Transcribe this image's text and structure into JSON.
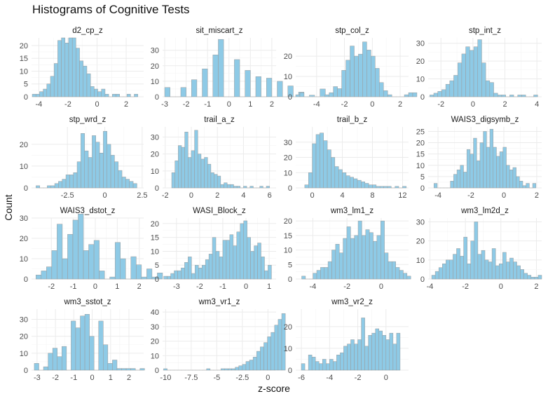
{
  "plot": {
    "title": "Histograms of Cognitive Tests",
    "xlabel": "z-score",
    "ylabel": "Count"
  },
  "colors": {
    "bar_fill": "#8ecae6",
    "bar_stroke": "#9a9a9a",
    "grid": "#ebebeb",
    "text": "#4d4d4d"
  },
  "chart_data": [
    {
      "type": "bar",
      "title": "d2_cp_z",
      "xlim": [
        -4.5,
        3.2
      ],
      "ylim": [
        0,
        23
      ],
      "xticks": [
        -4,
        -2,
        0,
        2
      ],
      "yticks": [
        0,
        5,
        10,
        15,
        20
      ],
      "bin_start": -4.45,
      "bin_width": 0.25,
      "values": [
        1,
        1,
        2,
        3,
        5,
        8,
        13,
        22,
        23,
        21,
        23,
        23,
        19,
        14,
        12,
        9,
        4,
        3,
        2,
        3,
        1,
        0,
        1,
        1,
        0,
        0,
        1,
        0,
        1
      ]
    },
    {
      "type": "bar",
      "title": "sit_miscart_z",
      "xlim": [
        -3.1,
        2.2
      ],
      "ylim": [
        0,
        38
      ],
      "xticks": [
        -3,
        -2,
        -1,
        0,
        1,
        2
      ],
      "yticks": [
        0,
        10,
        20,
        30
      ],
      "bin_start": -3.0,
      "bin_width": 0.25,
      "values": [
        6,
        0,
        0,
        6,
        0,
        11,
        0,
        18,
        0,
        27,
        37,
        0,
        0,
        24,
        0,
        17,
        0,
        13,
        0,
        12,
        0,
        10,
        0,
        7,
        0,
        3,
        0,
        1,
        0,
        5
      ]
    },
    {
      "type": "bar",
      "title": "stp_col_z",
      "xlim": [
        -5.5,
        2.6
      ],
      "ylim": [
        0,
        29
      ],
      "xticks": [
        -4,
        -2,
        0,
        2
      ],
      "yticks": [
        0,
        10,
        20
      ],
      "bin_start": -5.5,
      "bin_width": 0.3,
      "values": [
        1,
        2,
        0,
        0,
        0,
        0,
        0,
        1,
        2,
        5,
        4,
        13,
        18,
        25,
        20,
        21,
        27,
        23,
        20,
        14,
        7,
        3,
        1,
        0,
        0,
        0,
        1,
        2,
        2
      ]
    },
    {
      "type": "bar",
      "title": "stp_int_z",
      "xlim": [
        -2.8,
        4.3
      ],
      "ylim": [
        0,
        33
      ],
      "xticks": [
        -2,
        0,
        2,
        4
      ],
      "yticks": [
        0,
        10,
        20,
        30
      ],
      "bin_start": -2.7,
      "bin_width": 0.25,
      "values": [
        1,
        2,
        3,
        4,
        7,
        9,
        12,
        19,
        24,
        28,
        26,
        28,
        32,
        19,
        9,
        8,
        2,
        1,
        1,
        0,
        1,
        0,
        1,
        1,
        0,
        0,
        1
      ]
    },
    {
      "type": "bar",
      "title": "stp_wrd_z",
      "xlim": [
        -4.9,
        2.6
      ],
      "ylim": [
        0,
        28
      ],
      "xticks": [
        -2.5,
        0,
        2.5
      ],
      "yticks": [
        0,
        10,
        20
      ],
      "bin_start": -4.6,
      "bin_width": 0.25,
      "values": [
        1,
        0,
        0,
        1,
        1,
        2,
        3,
        4,
        6,
        6,
        7,
        12,
        25,
        17,
        14,
        24,
        21,
        16,
        26,
        20,
        15,
        12,
        8,
        5,
        4,
        3,
        2
      ]
    },
    {
      "type": "bar",
      "title": "trail_a_z",
      "xlim": [
        -2.2,
        6.5
      ],
      "ylim": [
        0,
        36
      ],
      "xticks": [
        -2,
        0,
        2,
        4,
        6
      ],
      "yticks": [
        0,
        10,
        20,
        30
      ],
      "bin_start": -1.5,
      "bin_width": 0.25,
      "values": [
        9,
        16,
        25,
        24,
        33,
        18,
        22,
        34,
        20,
        17,
        18,
        14,
        9,
        8,
        7,
        2,
        3,
        2,
        2,
        1,
        1,
        0,
        1,
        0,
        1,
        0,
        0,
        1,
        0,
        1
      ]
    },
    {
      "type": "bar",
      "title": "trail_b_z",
      "xlim": [
        -2.2,
        12.8
      ],
      "ylim": [
        0,
        40
      ],
      "xticks": [
        0,
        4,
        8,
        12
      ],
      "yticks": [
        0,
        10,
        20,
        30
      ],
      "bin_start": -1.0,
      "bin_width": 0.5,
      "values": [
        2,
        10,
        29,
        35,
        36,
        31,
        25,
        20,
        14,
        12,
        10,
        8,
        7,
        6,
        5,
        4,
        3,
        2,
        2,
        1,
        1,
        1,
        1,
        0,
        1,
        0,
        1
      ]
    },
    {
      "type": "bar",
      "title": "WAIS3_digsymb_z",
      "xlim": [
        -4.6,
        2.3
      ],
      "ylim": [
        0,
        27
      ],
      "xticks": [
        -4,
        -2,
        0,
        2
      ],
      "yticks": [
        0,
        5,
        10,
        15,
        20,
        25
      ],
      "bin_start": -4.25,
      "bin_width": 0.2,
      "values": [
        2,
        0,
        0,
        0,
        0,
        3,
        6,
        8,
        10,
        7,
        17,
        15,
        22,
        12,
        20,
        25,
        18,
        26,
        18,
        14,
        16,
        18,
        10,
        8,
        9,
        5,
        3,
        1,
        2,
        0,
        2
      ]
    },
    {
      "type": "bar",
      "title": "WAIS3_dstot_z",
      "xlim": [
        -2.9,
        2.2
      ],
      "ylim": [
        0,
        30
      ],
      "xticks": [
        -2,
        -1,
        0,
        1,
        2
      ],
      "yticks": [
        0,
        10,
        20,
        30
      ],
      "bin_start": -2.7,
      "bin_width": 0.24,
      "values": [
        2,
        4,
        6,
        14,
        27,
        10,
        22,
        29,
        32,
        14,
        17,
        19,
        4,
        0,
        1,
        18,
        10,
        0,
        11,
        7,
        1,
        5,
        1,
        3
      ]
    },
    {
      "type": "bar",
      "title": "WASI_Block_z",
      "xlim": [
        -3.6,
        1.3
      ],
      "ylim": [
        0,
        22
      ],
      "xticks": [
        -3,
        -2,
        -1,
        0,
        1
      ],
      "yticks": [
        0,
        5,
        10,
        15,
        20
      ],
      "bin_start": -3.55,
      "bin_width": 0.15,
      "values": [
        1,
        1,
        2,
        3,
        3,
        4,
        6,
        8,
        2,
        5,
        4,
        5,
        7,
        9,
        15,
        10,
        8,
        14,
        14,
        16,
        12,
        17,
        20,
        21,
        15,
        10,
        12,
        13,
        8,
        3,
        5
      ]
    },
    {
      "type": "bar",
      "title": "wm3_lm1_z",
      "xlim": [
        -5.0,
        1.6
      ],
      "ylim": [
        0,
        21
      ],
      "xticks": [
        -4,
        -2,
        0
      ],
      "yticks": [
        0,
        5,
        10,
        15,
        20
      ],
      "bin_start": -4.65,
      "bin_width": 0.22,
      "values": [
        1,
        0,
        0,
        2,
        3,
        4,
        4,
        6,
        10,
        12,
        9,
        14,
        18,
        14,
        15,
        20,
        15,
        17,
        16,
        13,
        15,
        20,
        9,
        6,
        6,
        4,
        3,
        2,
        1
      ]
    },
    {
      "type": "bar",
      "title": "wm3_lm2d_z",
      "xlim": [
        -4.1,
        2.3
      ],
      "ylim": [
        0,
        32
      ],
      "xticks": [
        -4,
        -2,
        0,
        2
      ],
      "yticks": [
        0,
        10,
        20,
        30
      ],
      "bin_start": -3.9,
      "bin_width": 0.2,
      "values": [
        2,
        4,
        6,
        8,
        10,
        10,
        13,
        16,
        12,
        22,
        8,
        20,
        30,
        13,
        15,
        10,
        9,
        16,
        7,
        8,
        14,
        9,
        11,
        9,
        7,
        5,
        3,
        2,
        1,
        1,
        2
      ]
    },
    {
      "type": "bar",
      "title": "wm3_sstot_z",
      "xlim": [
        -3.3,
        2.8
      ],
      "ylim": [
        0,
        36
      ],
      "xticks": [
        -3,
        -2,
        -1,
        0,
        1,
        2
      ],
      "yticks": [
        0,
        10,
        20,
        30
      ],
      "bin_start": -3.15,
      "bin_width": 0.25,
      "values": [
        4,
        0,
        2,
        10,
        13,
        8,
        14,
        0,
        29,
        25,
        32,
        33,
        20,
        0,
        29,
        15,
        4,
        6,
        1,
        1,
        1,
        1,
        0,
        1
      ]
    },
    {
      "type": "bar",
      "title": "wm3_vr1_z",
      "xlim": [
        -10.3,
        0.8
      ],
      "ylim": [
        0,
        42
      ],
      "xticks": [
        -10,
        -7.5,
        -5,
        -2.5,
        0
      ],
      "yticks": [
        0,
        10,
        20,
        30,
        40
      ],
      "bin_start": -10.2,
      "bin_width": 0.35,
      "values": [
        1,
        0,
        0,
        0,
        0,
        0,
        0,
        0,
        0,
        0,
        0,
        0,
        1,
        0,
        0,
        0,
        1,
        1,
        1,
        1,
        2,
        3,
        4,
        6,
        7,
        9,
        13,
        16,
        19,
        23,
        26,
        31,
        35,
        39
      ]
    },
    {
      "type": "bar",
      "title": "wm3_vr2_z",
      "xlim": [
        -6.4,
        1.6
      ],
      "ylim": [
        0,
        28
      ],
      "xticks": [
        -6,
        -4,
        -2,
        0
      ],
      "yticks": [
        0,
        10,
        20
      ],
      "bin_start": -6.0,
      "bin_width": 0.25,
      "values": [
        3,
        0,
        7,
        6,
        4,
        3,
        5,
        3,
        5,
        4,
        7,
        8,
        11,
        12,
        14,
        12,
        14,
        24,
        11,
        16,
        17,
        19,
        18,
        16,
        14,
        17,
        12,
        17
      ]
    }
  ]
}
